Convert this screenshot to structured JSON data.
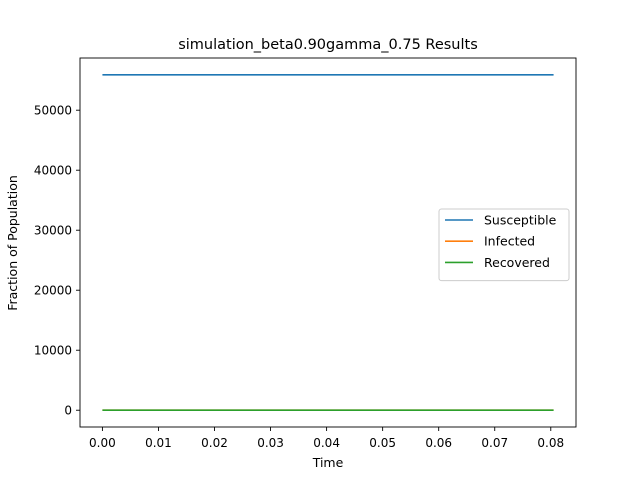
{
  "chart_data": {
    "type": "line",
    "title": "simulation_beta0.90gamma_0.75 Results",
    "xlabel": "Time",
    "ylabel": "Fraction of Population",
    "xlim": [
      -0.004,
      0.0845
    ],
    "ylim": [
      -2795,
      58700
    ],
    "x_ticks": [
      0.0,
      0.01,
      0.02,
      0.03,
      0.04,
      0.05,
      0.06,
      0.07,
      0.08
    ],
    "x_tick_labels": [
      "0.00",
      "0.01",
      "0.02",
      "0.03",
      "0.04",
      "0.05",
      "0.06",
      "0.07",
      "0.08"
    ],
    "y_ticks": [
      0,
      10000,
      20000,
      30000,
      40000,
      50000
    ],
    "y_tick_labels": [
      "0",
      "10000",
      "20000",
      "30000",
      "40000",
      "50000"
    ],
    "grid": false,
    "legend_position": "center-right",
    "x": [
      0.0,
      0.0805
    ],
    "series": [
      {
        "name": "Susceptible",
        "color": "#1f77b4",
        "values": [
          55900,
          55900
        ]
      },
      {
        "name": "Infected",
        "color": "#ff7f0e",
        "values": [
          1,
          1
        ]
      },
      {
        "name": "Recovered",
        "color": "#2ca02c",
        "values": [
          0,
          0
        ]
      }
    ]
  }
}
